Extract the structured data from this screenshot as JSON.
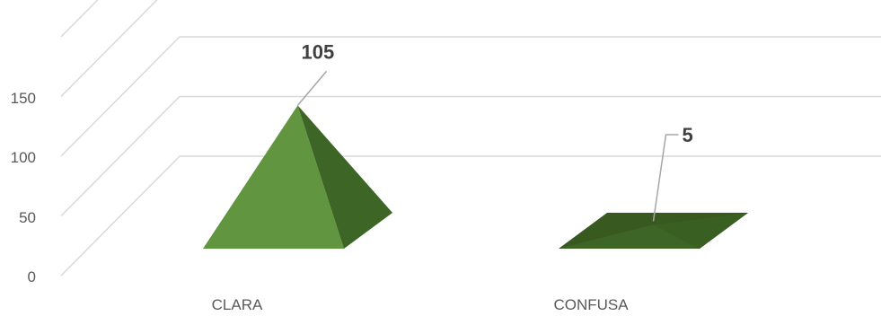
{
  "chart_data": {
    "type": "bar",
    "style": "3d-pyramid",
    "categories": [
      "CLARA",
      "CONFUSA"
    ],
    "values": [
      105,
      5
    ],
    "data_labels": [
      "105",
      "5"
    ],
    "yticks": [
      "0",
      "50",
      "100",
      "150"
    ],
    "ylim": [
      0,
      200
    ],
    "grid": true,
    "legend": "none",
    "title": "",
    "xlabel": "",
    "ylabel": "",
    "colors": {
      "face_light": "#62953f",
      "face_dark": "#3d6526",
      "base_dark": "#38591f",
      "grid": "#d9d9d9",
      "text": "#595959",
      "label": "#404040"
    }
  }
}
